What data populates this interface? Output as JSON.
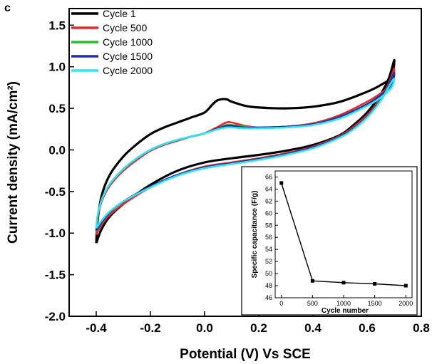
{
  "panel_label": "c",
  "chart_data": [
    {
      "type": "line",
      "title": "",
      "xlabel": "Potential (V) Vs SCE",
      "ylabel": "Current density (mA/cm²)",
      "xlim": [
        -0.5,
        0.8
      ],
      "ylim": [
        -2.0,
        1.7
      ],
      "x_ticks": [
        -0.4,
        -0.2,
        0.0,
        0.2,
        0.4,
        0.6,
        0.8
      ],
      "y_ticks": [
        -2.0,
        -1.5,
        -1.0,
        -0.5,
        0.0,
        0.5,
        1.0,
        1.5
      ],
      "x_tick_labels": [
        "-0.4",
        "-0.2",
        "0.0",
        "0.2",
        "0.4",
        "0.6",
        "0.8"
      ],
      "y_tick_labels": [
        "-2.0",
        "-1.5",
        "-1.0",
        "-0.5",
        "0.0",
        "0.5",
        "1.0",
        "1.5"
      ],
      "legend_position": "top-left",
      "series": [
        {
          "name": "Cycle 1",
          "color": "#000000",
          "points": [
            [
              -0.4,
              -1.12
            ],
            [
              -0.395,
              -0.85
            ],
            [
              -0.38,
              -0.55
            ],
            [
              -0.35,
              -0.3
            ],
            [
              -0.3,
              -0.08
            ],
            [
              -0.25,
              0.07
            ],
            [
              -0.2,
              0.19
            ],
            [
              -0.15,
              0.27
            ],
            [
              -0.1,
              0.33
            ],
            [
              -0.05,
              0.39
            ],
            [
              0.0,
              0.45
            ],
            [
              0.03,
              0.55
            ],
            [
              0.05,
              0.6
            ],
            [
              0.08,
              0.61
            ],
            [
              0.1,
              0.58
            ],
            [
              0.15,
              0.53
            ],
            [
              0.2,
              0.51
            ],
            [
              0.3,
              0.5
            ],
            [
              0.4,
              0.52
            ],
            [
              0.5,
              0.58
            ],
            [
              0.6,
              0.7
            ],
            [
              0.65,
              0.78
            ],
            [
              0.69,
              0.88
            ],
            [
              0.7,
              1.08
            ],
            [
              0.68,
              0.86
            ],
            [
              0.65,
              0.67
            ],
            [
              0.6,
              0.45
            ],
            [
              0.55,
              0.3
            ],
            [
              0.5,
              0.18
            ],
            [
              0.4,
              0.06
            ],
            [
              0.3,
              -0.01
            ],
            [
              0.2,
              -0.06
            ],
            [
              0.1,
              -0.1
            ],
            [
              0.0,
              -0.15
            ],
            [
              -0.1,
              -0.25
            ],
            [
              -0.2,
              -0.42
            ],
            [
              -0.3,
              -0.65
            ],
            [
              -0.35,
              -0.8
            ],
            [
              -0.38,
              -0.95
            ],
            [
              -0.4,
              -1.12
            ]
          ]
        },
        {
          "name": "Cycle 500",
          "color": "#e8282a",
          "points": [
            [
              -0.4,
              -1.02
            ],
            [
              -0.395,
              -0.82
            ],
            [
              -0.38,
              -0.62
            ],
            [
              -0.35,
              -0.43
            ],
            [
              -0.3,
              -0.25
            ],
            [
              -0.25,
              -0.12
            ],
            [
              -0.2,
              -0.01
            ],
            [
              -0.15,
              0.06
            ],
            [
              -0.1,
              0.11
            ],
            [
              -0.05,
              0.16
            ],
            [
              0.0,
              0.2
            ],
            [
              0.05,
              0.28
            ],
            [
              0.08,
              0.33
            ],
            [
              0.1,
              0.33
            ],
            [
              0.15,
              0.29
            ],
            [
              0.2,
              0.27
            ],
            [
              0.3,
              0.28
            ],
            [
              0.4,
              0.32
            ],
            [
              0.5,
              0.42
            ],
            [
              0.6,
              0.58
            ],
            [
              0.65,
              0.68
            ],
            [
              0.69,
              0.8
            ],
            [
              0.7,
              0.98
            ],
            [
              0.68,
              0.8
            ],
            [
              0.65,
              0.62
            ],
            [
              0.6,
              0.42
            ],
            [
              0.55,
              0.28
            ],
            [
              0.5,
              0.17
            ],
            [
              0.4,
              0.04
            ],
            [
              0.3,
              -0.04
            ],
            [
              0.2,
              -0.1
            ],
            [
              0.1,
              -0.15
            ],
            [
              0.0,
              -0.2
            ],
            [
              -0.1,
              -0.3
            ],
            [
              -0.2,
              -0.45
            ],
            [
              -0.3,
              -0.65
            ],
            [
              -0.35,
              -0.78
            ],
            [
              -0.38,
              -0.9
            ],
            [
              -0.4,
              -1.02
            ]
          ]
        },
        {
          "name": "Cycle 1000",
          "color": "#22c32a",
          "points": [
            [
              -0.4,
              -0.98
            ],
            [
              -0.395,
              -0.8
            ],
            [
              -0.38,
              -0.6
            ],
            [
              -0.35,
              -0.41
            ],
            [
              -0.3,
              -0.23
            ],
            [
              -0.25,
              -0.1
            ],
            [
              -0.2,
              0.0
            ],
            [
              -0.15,
              0.07
            ],
            [
              -0.1,
              0.12
            ],
            [
              -0.05,
              0.16
            ],
            [
              0.0,
              0.2
            ],
            [
              0.05,
              0.26
            ],
            [
              0.08,
              0.3
            ],
            [
              0.1,
              0.3
            ],
            [
              0.15,
              0.28
            ],
            [
              0.2,
              0.27
            ],
            [
              0.3,
              0.28
            ],
            [
              0.4,
              0.31
            ],
            [
              0.5,
              0.4
            ],
            [
              0.6,
              0.55
            ],
            [
              0.65,
              0.66
            ],
            [
              0.69,
              0.78
            ],
            [
              0.7,
              0.92
            ],
            [
              0.68,
              0.78
            ],
            [
              0.65,
              0.6
            ],
            [
              0.6,
              0.4
            ],
            [
              0.55,
              0.26
            ],
            [
              0.5,
              0.16
            ],
            [
              0.4,
              0.03
            ],
            [
              0.3,
              -0.05
            ],
            [
              0.2,
              -0.11
            ],
            [
              0.1,
              -0.16
            ],
            [
              0.0,
              -0.21
            ],
            [
              -0.1,
              -0.3
            ],
            [
              -0.2,
              -0.44
            ],
            [
              -0.3,
              -0.62
            ],
            [
              -0.35,
              -0.75
            ],
            [
              -0.38,
              -0.87
            ],
            [
              -0.4,
              -0.98
            ]
          ]
        },
        {
          "name": "Cycle 1500",
          "color": "#1f2fa8",
          "points": [
            [
              -0.4,
              -0.97
            ],
            [
              -0.395,
              -0.8
            ],
            [
              -0.38,
              -0.6
            ],
            [
              -0.35,
              -0.41
            ],
            [
              -0.3,
              -0.23
            ],
            [
              -0.25,
              -0.1
            ],
            [
              -0.2,
              0.0
            ],
            [
              -0.15,
              0.07
            ],
            [
              -0.1,
              0.12
            ],
            [
              -0.05,
              0.16
            ],
            [
              0.0,
              0.2
            ],
            [
              0.05,
              0.26
            ],
            [
              0.08,
              0.29
            ],
            [
              0.1,
              0.29
            ],
            [
              0.15,
              0.27
            ],
            [
              0.2,
              0.27
            ],
            [
              0.3,
              0.28
            ],
            [
              0.4,
              0.31
            ],
            [
              0.5,
              0.4
            ],
            [
              0.6,
              0.55
            ],
            [
              0.65,
              0.66
            ],
            [
              0.69,
              0.78
            ],
            [
              0.7,
              0.93
            ],
            [
              0.68,
              0.78
            ],
            [
              0.65,
              0.6
            ],
            [
              0.6,
              0.4
            ],
            [
              0.55,
              0.26
            ],
            [
              0.5,
              0.16
            ],
            [
              0.4,
              0.03
            ],
            [
              0.3,
              -0.05
            ],
            [
              0.2,
              -0.11
            ],
            [
              0.1,
              -0.16
            ],
            [
              0.0,
              -0.21
            ],
            [
              -0.1,
              -0.3
            ],
            [
              -0.2,
              -0.44
            ],
            [
              -0.3,
              -0.62
            ],
            [
              -0.35,
              -0.75
            ],
            [
              -0.38,
              -0.87
            ],
            [
              -0.4,
              -0.97
            ]
          ]
        },
        {
          "name": "Cycle 2000",
          "color": "#2ee6f0",
          "points": [
            [
              -0.4,
              -0.94
            ],
            [
              -0.395,
              -0.79
            ],
            [
              -0.38,
              -0.6
            ],
            [
              -0.35,
              -0.41
            ],
            [
              -0.3,
              -0.23
            ],
            [
              -0.25,
              -0.1
            ],
            [
              -0.2,
              0.0
            ],
            [
              -0.15,
              0.07
            ],
            [
              -0.1,
              0.12
            ],
            [
              -0.05,
              0.16
            ],
            [
              0.0,
              0.2
            ],
            [
              0.05,
              0.25
            ],
            [
              0.08,
              0.27
            ],
            [
              0.1,
              0.27
            ],
            [
              0.15,
              0.26
            ],
            [
              0.2,
              0.26
            ],
            [
              0.3,
              0.27
            ],
            [
              0.4,
              0.3
            ],
            [
              0.5,
              0.38
            ],
            [
              0.6,
              0.53
            ],
            [
              0.65,
              0.63
            ],
            [
              0.69,
              0.75
            ],
            [
              0.7,
              0.86
            ],
            [
              0.68,
              0.76
            ],
            [
              0.65,
              0.59
            ],
            [
              0.6,
              0.39
            ],
            [
              0.55,
              0.25
            ],
            [
              0.5,
              0.15
            ],
            [
              0.4,
              0.02
            ],
            [
              0.3,
              -0.06
            ],
            [
              0.2,
              -0.12
            ],
            [
              0.1,
              -0.17
            ],
            [
              0.0,
              -0.22
            ],
            [
              -0.1,
              -0.31
            ],
            [
              -0.2,
              -0.45
            ],
            [
              -0.3,
              -0.62
            ],
            [
              -0.35,
              -0.74
            ],
            [
              -0.38,
              -0.85
            ],
            [
              -0.4,
              -0.94
            ]
          ]
        }
      ]
    },
    {
      "type": "line",
      "title": "",
      "xlabel": "Cycle number",
      "ylabel": "Specific capacitance (F/g)",
      "xlim": [
        -100,
        2100
      ],
      "ylim": [
        46,
        67
      ],
      "x_ticks": [
        0,
        500,
        1000,
        1500,
        2000
      ],
      "y_ticks": [
        46,
        48,
        50,
        52,
        54,
        56,
        58,
        60,
        62,
        64,
        66
      ],
      "x_tick_labels": [
        "0",
        "500",
        "1000",
        "1500",
        "2000"
      ],
      "y_tick_labels": [
        "46",
        "48",
        "50",
        "52",
        "54",
        "56",
        "58",
        "60",
        "62",
        "64",
        "66"
      ],
      "series": [
        {
          "color": "#000000",
          "marker": "square",
          "x": [
            0,
            500,
            1000,
            1500,
            2000
          ],
          "values": [
            65.0,
            48.8,
            48.5,
            48.3,
            48.0
          ]
        }
      ]
    }
  ]
}
